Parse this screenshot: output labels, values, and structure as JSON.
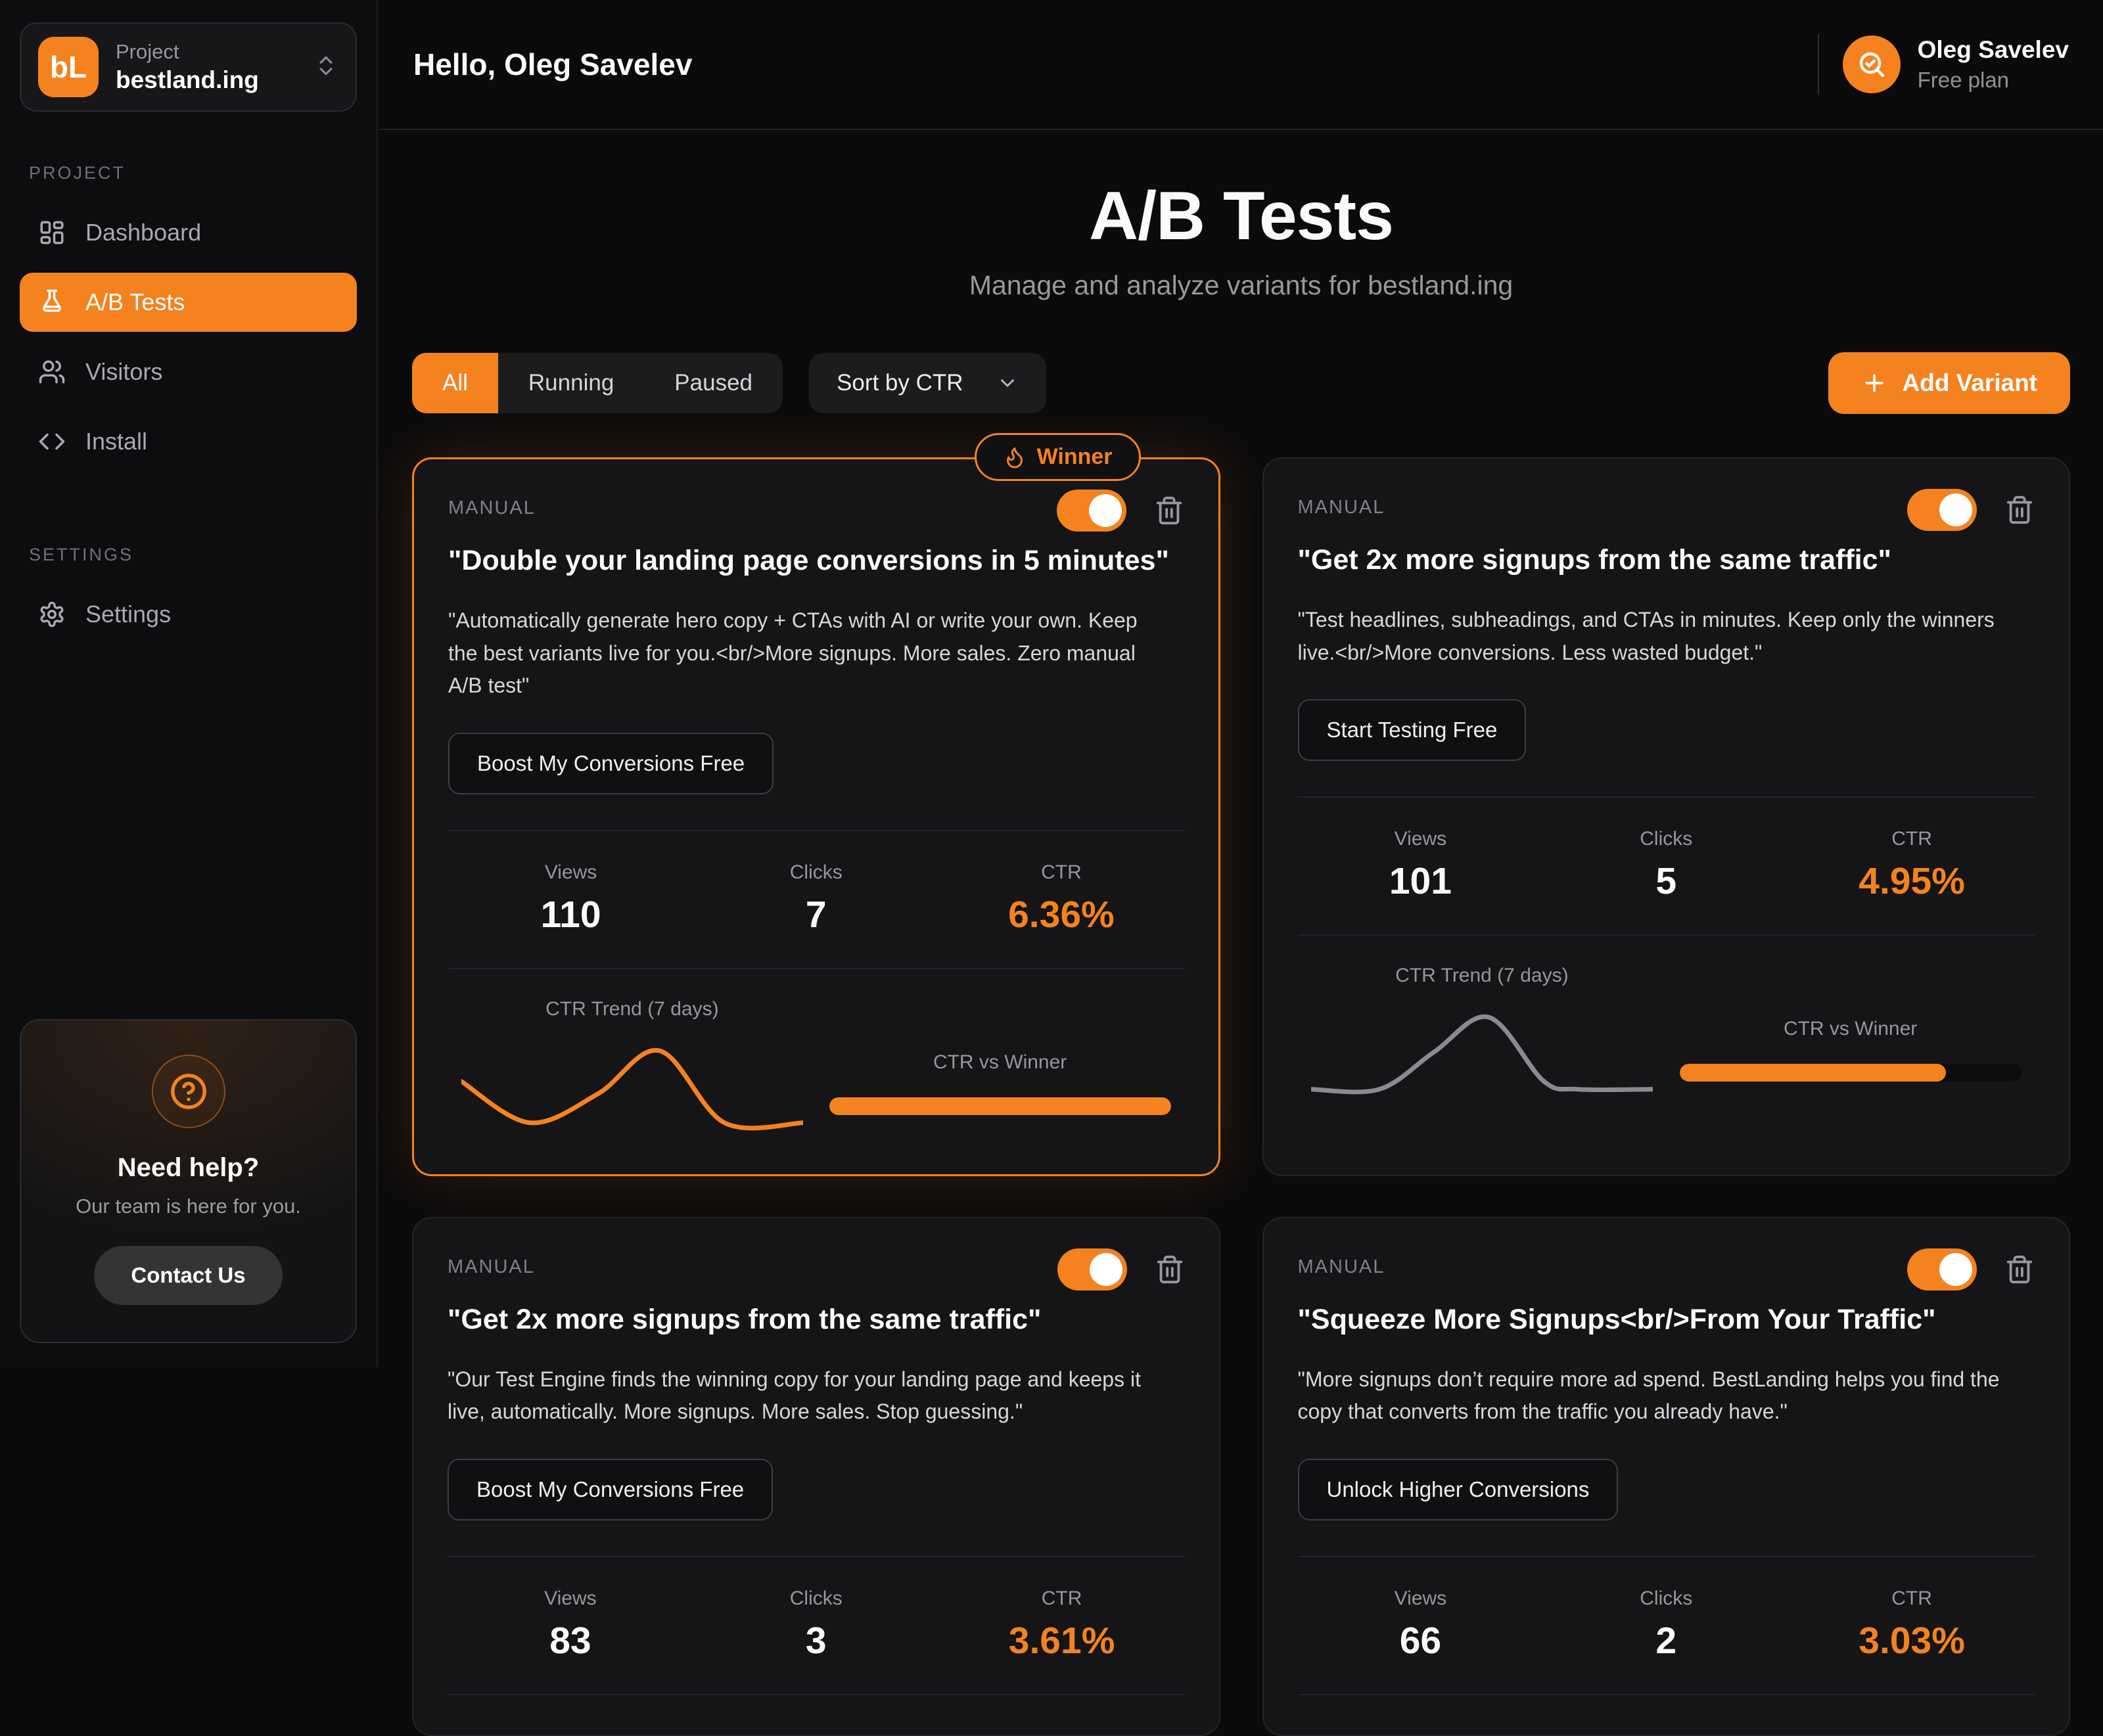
{
  "colors": {
    "accent": "#F4821F",
    "card_border_default": "#242428",
    "muted_text": "#97979b"
  },
  "sidebar": {
    "logo_text": "bL",
    "project_label": "Project",
    "project_name": "bestland.ing",
    "sections": [
      {
        "label": "PROJECT",
        "items": [
          {
            "label": "Dashboard"
          },
          {
            "label": "A/B Tests",
            "active": true
          },
          {
            "label": "Visitors"
          },
          {
            "label": "Install"
          }
        ]
      },
      {
        "label": "SETTINGS",
        "items": [
          {
            "label": "Settings"
          }
        ]
      }
    ],
    "help": {
      "title": "Need help?",
      "subtitle": "Our team is here for you.",
      "button": "Contact Us"
    }
  },
  "header": {
    "greeting": "Hello, Oleg Savelev",
    "user_name": "Oleg Savelev",
    "user_plan": "Free plan"
  },
  "page": {
    "title": "A/B Tests",
    "subtitle": "Manage and analyze variants for bestland.ing"
  },
  "controls": {
    "filters": [
      "All",
      "Running",
      "Paused"
    ],
    "active_filter": "All",
    "sort_label": "Sort by CTR",
    "add_button": "Add Variant"
  },
  "cards": [
    {
      "type_label": "MANUAL",
      "badge": "Winner",
      "winner": true,
      "highlight": true,
      "toggle_on": true,
      "title": "\"Double your landing page conversions in 5 minutes\"",
      "desc": "\"Automatically generate hero copy + CTAs with AI or write your own. Keep the best variants live for you.<br/>More signups. More sales. Zero manual A/B test\"",
      "cta": "Boost My Conversions Free",
      "stats": {
        "views_label": "Views",
        "views": "110",
        "clicks_label": "Clicks",
        "clicks": "7",
        "ctr_label": "CTR",
        "ctr": "6.36%"
      },
      "trend_label": "CTR Trend (7 days)",
      "vs_label": "CTR vs Winner",
      "trend_color": "#F4821F",
      "trend": [
        [
          0,
          0.45
        ],
        [
          0.2,
          0.95
        ],
        [
          0.4,
          0.6
        ],
        [
          0.58,
          0.08
        ],
        [
          0.77,
          0.95
        ],
        [
          1,
          0.95
        ]
      ],
      "progress": 1.0
    },
    {
      "type_label": "MANUAL",
      "winner": false,
      "highlight": false,
      "toggle_on": true,
      "title": "\"Get 2x more signups from the same traffic\"",
      "desc": "\"Test headlines, subheadings, and CTAs in minutes. Keep only the winners live.<br/>More conversions. Less wasted budget.\"",
      "cta": "Start Testing Free",
      "stats": {
        "views_label": "Views",
        "views": "101",
        "clicks_label": "Clicks",
        "clicks": "5",
        "ctr_label": "CTR",
        "ctr": "4.95%"
      },
      "trend_label": "CTR Trend (7 days)",
      "vs_label": "CTR vs Winner",
      "trend_color": "#8a8a8f",
      "trend": [
        [
          0,
          0.95
        ],
        [
          0.2,
          0.95
        ],
        [
          0.36,
          0.5
        ],
        [
          0.52,
          0.08
        ],
        [
          0.68,
          0.85
        ],
        [
          0.78,
          0.95
        ],
        [
          1,
          0.95
        ]
      ],
      "progress": 0.78
    },
    {
      "type_label": "MANUAL",
      "winner": false,
      "highlight": false,
      "toggle_on": true,
      "title": "\"Get 2x more signups from the same traffic\"",
      "desc": "\"Our Test Engine finds the winning copy for your landing page and keeps it live, automatically. More signups. More sales. Stop guessing.\"",
      "cta": "Boost My Conversions Free",
      "stats": {
        "views_label": "Views",
        "views": "83",
        "clicks_label": "Clicks",
        "clicks": "3",
        "ctr_label": "CTR",
        "ctr": "3.61%"
      }
    },
    {
      "type_label": "MANUAL",
      "winner": false,
      "highlight": false,
      "toggle_on": true,
      "title": "\"Squeeze More Signups<br/>From Your Traffic\"",
      "desc": "\"More signups don’t require more ad spend. BestLanding helps you find the copy that converts from the traffic you already have.\"",
      "cta": "Unlock Higher Conversions",
      "stats": {
        "views_label": "Views",
        "views": "66",
        "clicks_label": "Clicks",
        "clicks": "2",
        "ctr_label": "CTR",
        "ctr": "3.03%"
      }
    }
  ]
}
